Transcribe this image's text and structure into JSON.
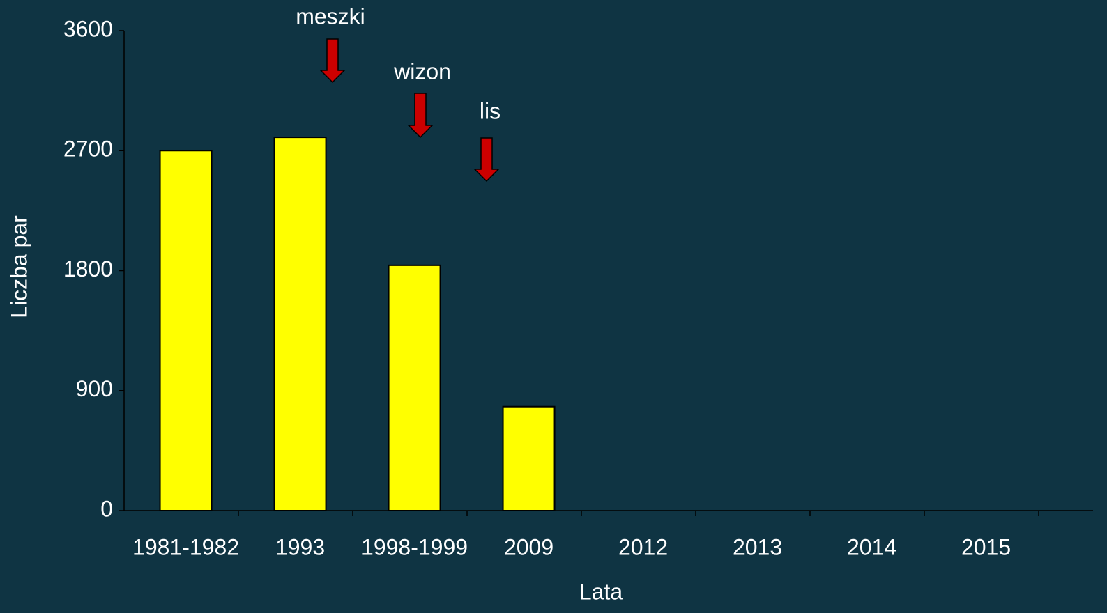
{
  "chart_data": {
    "type": "bar",
    "categories": [
      "1981-1982",
      "1993",
      "1998-1999",
      "2009",
      "2012",
      "2013",
      "2014",
      "2015"
    ],
    "values": [
      2700,
      2800,
      1840,
      780,
      null,
      null,
      null,
      null
    ],
    "color": "#ffff00",
    "ylim": [
      0,
      3600
    ],
    "yticks": [
      0,
      900,
      1800,
      2700,
      3600
    ],
    "y_label": "Liczba par",
    "x_label": "Lata",
    "annotations": [
      "meszki",
      "wizon",
      "lis"
    ]
  }
}
